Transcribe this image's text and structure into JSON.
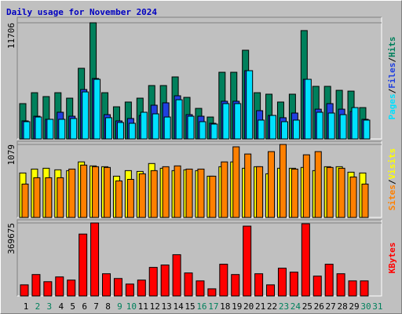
{
  "chart_data": [
    {
      "type": "bar",
      "title": "Daily usage for November 2024",
      "ylim": [
        0,
        11706
      ],
      "yticks": [
        11706
      ],
      "legend_separator": "/",
      "series": [
        {
          "name": "Hits",
          "color": "#00805c",
          "values": [
            3560,
            4660,
            4270,
            4660,
            4110,
            7120,
            11706,
            4660,
            3240,
            3720,
            4110,
            5380,
            5380,
            6250,
            4190,
            3080,
            2210,
            6720,
            6720,
            8940,
            4660,
            4510,
            3720,
            4510,
            10920,
            5300,
            5300,
            4900,
            4820,
            3160,
            null
          ]
        },
        {
          "name": "Files",
          "color": "#2040e0",
          "values": [
            1820,
            2290,
            1980,
            2690,
            2290,
            4980,
            6090,
            2450,
            1820,
            2060,
            2370,
            3400,
            3640,
            4350,
            2450,
            2290,
            1580,
            3800,
            3800,
            6880,
            2850,
            2370,
            2140,
            2610,
            6010,
            3000,
            3560,
            3000,
            2770,
            1980,
            null
          ]
        },
        {
          "name": "Pages",
          "color": "#00e0ff",
          "values": [
            1740,
            2210,
            1980,
            1980,
            2060,
            4740,
            6010,
            2140,
            1660,
            1580,
            2690,
            2530,
            2210,
            3950,
            2290,
            1740,
            1500,
            3560,
            3560,
            6880,
            1900,
            2370,
            1740,
            1900,
            6010,
            2690,
            2610,
            2450,
            3160,
            1900,
            null
          ]
        }
      ]
    },
    {
      "type": "bar",
      "ylim": [
        0,
        1079
      ],
      "yticks": [
        1079
      ],
      "legend_separator": "/",
      "series": [
        {
          "name": "Visits",
          "color": "#ffff00",
          "values": [
            657,
            715,
            727,
            704,
            692,
            821,
            762,
            750,
            610,
            692,
            680,
            797,
            727,
            692,
            704,
            692,
            610,
            750,
            821,
            727,
            750,
            645,
            727,
            727,
            739,
            692,
            750,
            750,
            669,
            657,
            null
          ]
        },
        {
          "name": "Sites",
          "color": "#ff8000",
          "values": [
            493,
            587,
            587,
            587,
            715,
            774,
            750,
            739,
            540,
            563,
            645,
            692,
            750,
            762,
            715,
            715,
            610,
            821,
            1044,
            938,
            750,
            973,
            1079,
            715,
            926,
            973,
            739,
            727,
            598,
            493,
            null
          ]
        }
      ]
    },
    {
      "type": "bar",
      "ylim": [
        0,
        369675
      ],
      "yticks": [
        369675
      ],
      "categories": [
        "1",
        "2",
        "3",
        "4",
        "5",
        "6",
        "7",
        "8",
        "9",
        "10",
        "11",
        "12",
        "13",
        "14",
        "15",
        "16",
        "17",
        "18",
        "19",
        "20",
        "21",
        "22",
        "23",
        "24",
        "25",
        "26",
        "27",
        "28",
        "29",
        "30",
        "31"
      ],
      "category_colors": [
        "#000000",
        "#00805c",
        "#00805c",
        "#000000",
        "#000000",
        "#000000",
        "#000000",
        "#000000",
        "#00805c",
        "#00805c",
        "#000000",
        "#000000",
        "#000000",
        "#000000",
        "#000000",
        "#00805c",
        "#00805c",
        "#000000",
        "#000000",
        "#000000",
        "#000000",
        "#000000",
        "#00805c",
        "#00805c",
        "#000000",
        "#000000",
        "#000000",
        "#000000",
        "#000000",
        "#00805c",
        "#00805c"
      ],
      "series": [
        {
          "name": "KBytes",
          "color": "#ff0000",
          "values": [
            56250,
            108480,
            72330,
            96430,
            80360,
            313400,
            369675,
            112500,
            88390,
            60270,
            80360,
            144650,
            156700,
            208940,
            116520,
            76340,
            36160,
            160720,
            108480,
            353580,
            112500,
            56250,
            140630,
            120540,
            365640,
            100450,
            160720,
            112500,
            76340,
            76340,
            null
          ]
        }
      ]
    }
  ]
}
